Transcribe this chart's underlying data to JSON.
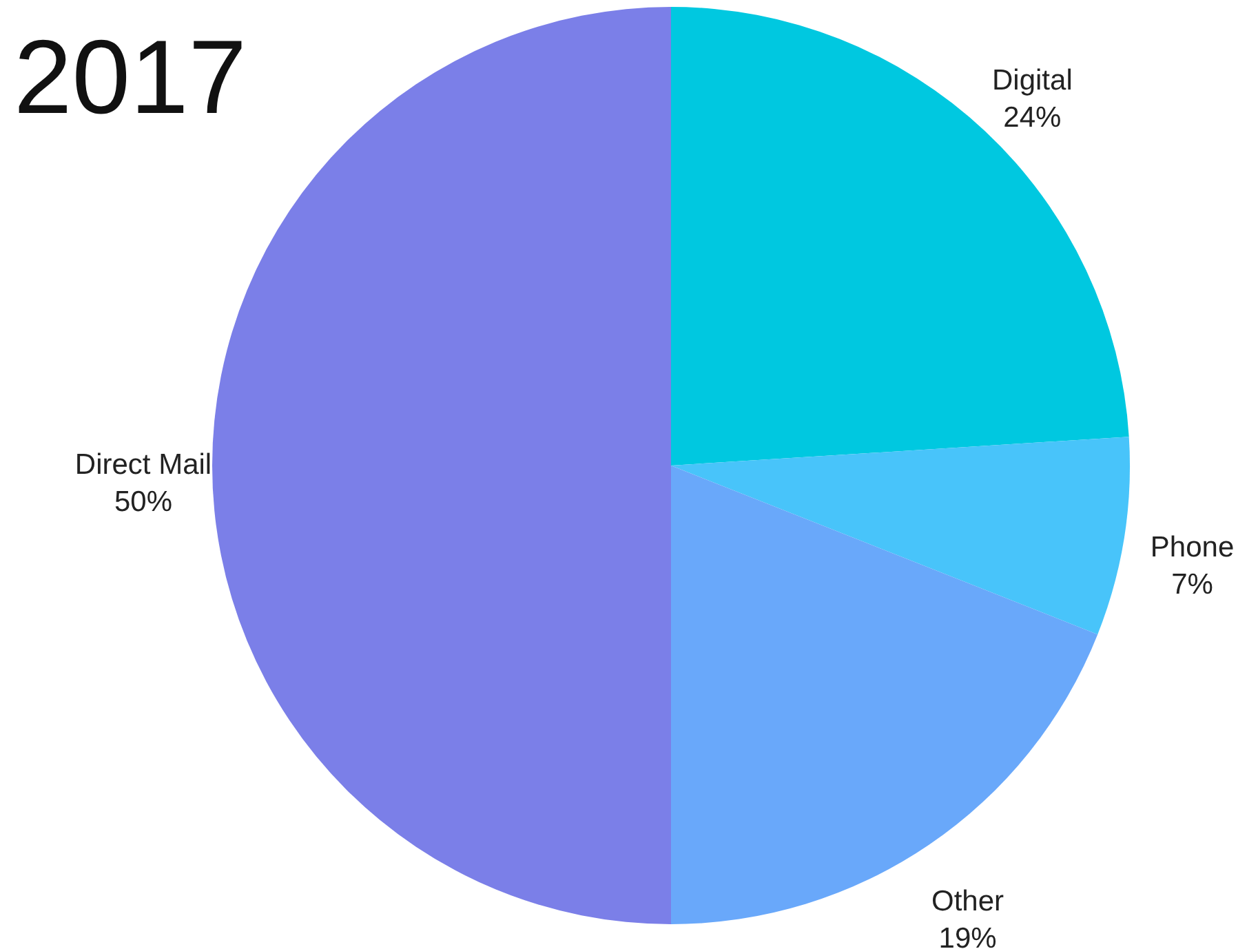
{
  "chart_data": {
    "type": "pie",
    "title": "2017",
    "categories": [
      "Digital",
      "Phone",
      "Other",
      "Direct Mail"
    ],
    "values": [
      24,
      7,
      19,
      50
    ],
    "value_labels": [
      "24%",
      "7%",
      "19%",
      "50%"
    ],
    "colors": [
      "#00c8e0",
      "#48c4fa",
      "#69a8fa",
      "#7b7fe8"
    ]
  }
}
